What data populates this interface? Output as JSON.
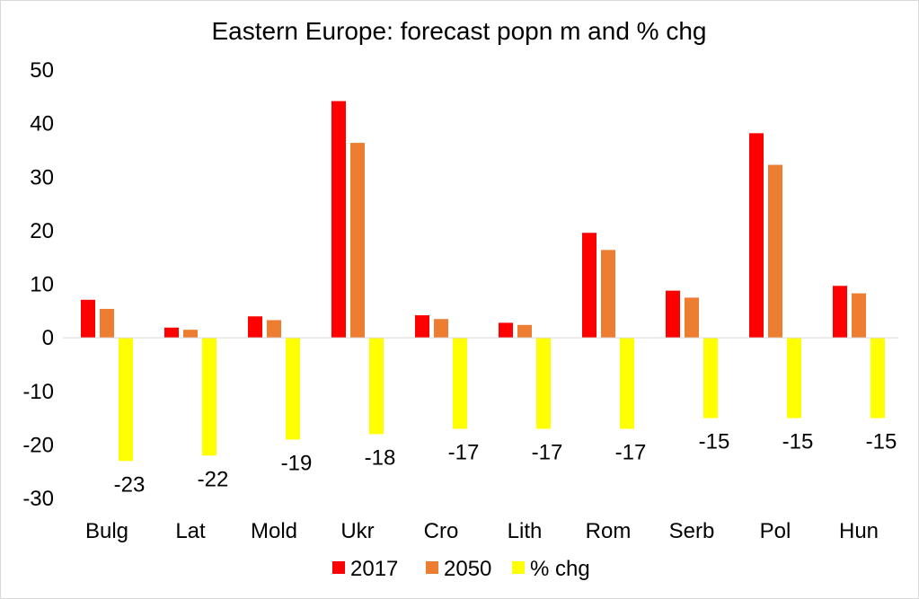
{
  "chart_data": {
    "type": "bar",
    "title": "Eastern Europe: forecast popn m and % chg",
    "xlabel": "",
    "ylabel": "",
    "categories": [
      "Bulg",
      "Lat",
      "Mold",
      "Ukr",
      "Cro",
      "Lith",
      "Rom",
      "Serb",
      "Pol",
      "Hun"
    ],
    "series": [
      {
        "name": "2017",
        "color": "#ff0000",
        "values": [
          7.1,
          1.9,
          4.0,
          44.2,
          4.2,
          2.8,
          19.6,
          8.8,
          38.2,
          9.7
        ]
      },
      {
        "name": "2050",
        "color": "#ed7d31",
        "values": [
          5.4,
          1.5,
          3.3,
          36.4,
          3.5,
          2.4,
          16.4,
          7.5,
          32.3,
          8.3
        ]
      },
      {
        "name": "% chg",
        "color": "#ffff00",
        "values": [
          -23,
          -22,
          -19,
          -18,
          -17,
          -17,
          -17,
          -15,
          -15,
          -15
        ],
        "data_labels": [
          "-23",
          "-22",
          "-19",
          "-18",
          "-17",
          "-17",
          "-17",
          "-15",
          "-15",
          "-15"
        ]
      }
    ],
    "ylim": [
      -30,
      50
    ],
    "yticks": [
      "50",
      "40",
      "30",
      "20",
      "10",
      "0",
      "-10",
      "-20",
      "-30"
    ],
    "grid": false,
    "legend_position": "bottom"
  }
}
